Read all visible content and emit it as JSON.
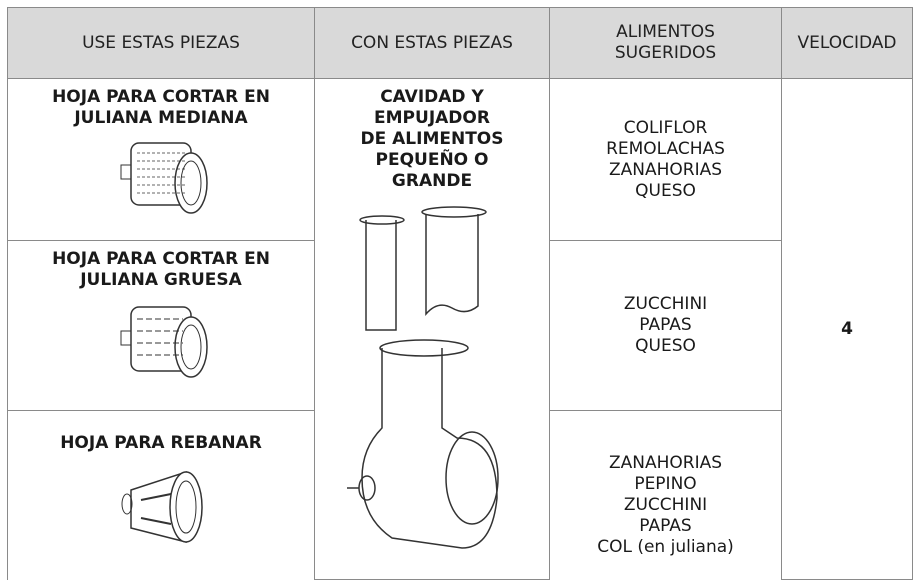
{
  "table": {
    "headers": [
      [
        "USE ESTAS PIEZAS"
      ],
      [
        "CON ESTAS PIEZAS"
      ],
      [
        "ALIMENTOS",
        "SUGERIDOS"
      ],
      [
        "VELOCIDAD"
      ]
    ],
    "rows": [
      {
        "piece": [
          "HOJA PARA CORTAR EN",
          "JULIANA MEDIANA"
        ],
        "foods": [
          "COLIFLOR",
          "REMOLACHAS",
          "ZANAHORIAS",
          "QUESO"
        ]
      },
      {
        "piece": [
          "HOJA PARA CORTAR EN",
          "JULIANA GRUESA"
        ],
        "foods": [
          "ZUCCHINI",
          "PAPAS",
          "QUESO"
        ]
      },
      {
        "piece": [
          "HOJA PARA REBANAR"
        ],
        "foods": [
          "ZANAHORIAS",
          "PEPINO",
          "ZUCCHINI",
          "PAPAS",
          "COL (en juliana)"
        ]
      }
    ],
    "with_parts": [
      "CAVIDAD Y",
      "EMPUJADOR",
      "DE ALIMENTOS",
      "PEQUEÑO O",
      "GRANDE"
    ],
    "speed": "4"
  }
}
